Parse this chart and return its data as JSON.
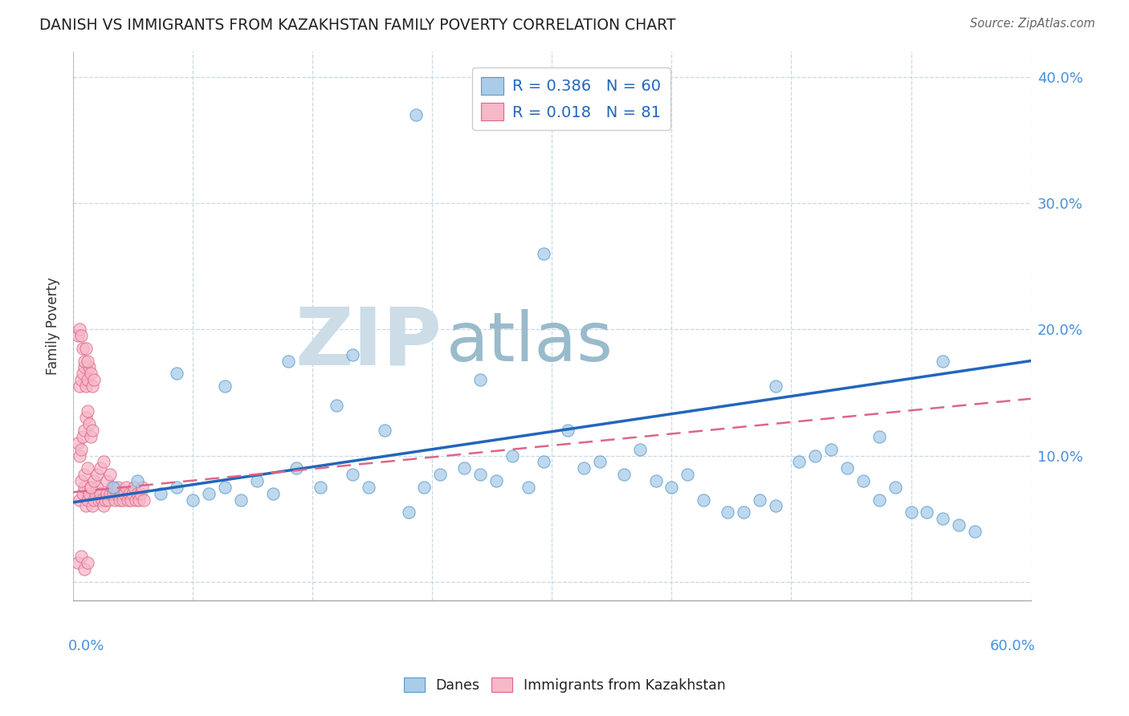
{
  "title": "DANISH VS IMMIGRANTS FROM KAZAKHSTAN FAMILY POVERTY CORRELATION CHART",
  "source": "Source: ZipAtlas.com",
  "ylabel": "Family Poverty",
  "yticks": [
    0.0,
    0.1,
    0.2,
    0.3,
    0.4
  ],
  "ytick_labels": [
    "",
    "10.0%",
    "20.0%",
    "30.0%",
    "40.0%"
  ],
  "xlim": [
    0.0,
    0.6
  ],
  "ylim": [
    -0.015,
    0.42
  ],
  "danes_R": 0.386,
  "danes_N": 60,
  "immigrants_R": 0.018,
  "immigrants_N": 81,
  "danes_color": "#aacce8",
  "danes_edge_color": "#5599cc",
  "immigrants_color": "#f7b8c8",
  "immigrants_edge_color": "#dd6688",
  "trend_blue": "#2266bb",
  "trend_pink": "#dd6688",
  "watermark_zip_color": "#ccdde8",
  "watermark_atlas_color": "#99bbcc",
  "background_color": "#ffffff",
  "danes_x": [
    0.025,
    0.04,
    0.055,
    0.065,
    0.075,
    0.085,
    0.095,
    0.105,
    0.115,
    0.125,
    0.14,
    0.155,
    0.165,
    0.175,
    0.185,
    0.195,
    0.21,
    0.22,
    0.23,
    0.245,
    0.255,
    0.265,
    0.275,
    0.285,
    0.295,
    0.31,
    0.32,
    0.33,
    0.345,
    0.355,
    0.365,
    0.375,
    0.385,
    0.395,
    0.41,
    0.42,
    0.43,
    0.44,
    0.455,
    0.465,
    0.475,
    0.485,
    0.495,
    0.505,
    0.515,
    0.525,
    0.535,
    0.545,
    0.555,
    0.565,
    0.065,
    0.095,
    0.135,
    0.175,
    0.215,
    0.255,
    0.295,
    0.44,
    0.505,
    0.545
  ],
  "danes_y": [
    0.075,
    0.08,
    0.07,
    0.075,
    0.065,
    0.07,
    0.075,
    0.065,
    0.08,
    0.07,
    0.09,
    0.075,
    0.14,
    0.085,
    0.075,
    0.12,
    0.055,
    0.075,
    0.085,
    0.09,
    0.085,
    0.08,
    0.1,
    0.075,
    0.095,
    0.12,
    0.09,
    0.095,
    0.085,
    0.105,
    0.08,
    0.075,
    0.085,
    0.065,
    0.055,
    0.055,
    0.065,
    0.06,
    0.095,
    0.1,
    0.105,
    0.09,
    0.08,
    0.065,
    0.075,
    0.055,
    0.055,
    0.05,
    0.045,
    0.04,
    0.165,
    0.155,
    0.175,
    0.18,
    0.37,
    0.16,
    0.26,
    0.155,
    0.115,
    0.175
  ],
  "imm_x": [
    0.004,
    0.006,
    0.007,
    0.008,
    0.009,
    0.01,
    0.011,
    0.012,
    0.013,
    0.014,
    0.015,
    0.016,
    0.017,
    0.018,
    0.019,
    0.02,
    0.021,
    0.022,
    0.023,
    0.024,
    0.025,
    0.026,
    0.027,
    0.028,
    0.029,
    0.03,
    0.031,
    0.032,
    0.033,
    0.034,
    0.035,
    0.036,
    0.037,
    0.038,
    0.039,
    0.04,
    0.041,
    0.042,
    0.043,
    0.044,
    0.005,
    0.007,
    0.009,
    0.011,
    0.013,
    0.015,
    0.017,
    0.019,
    0.021,
    0.023,
    0.003,
    0.004,
    0.005,
    0.006,
    0.007,
    0.008,
    0.009,
    0.01,
    0.011,
    0.012,
    0.004,
    0.005,
    0.006,
    0.007,
    0.008,
    0.009,
    0.01,
    0.011,
    0.012,
    0.013,
    0.003,
    0.004,
    0.005,
    0.006,
    0.007,
    0.008,
    0.009,
    0.003,
    0.005,
    0.007,
    0.009
  ],
  "imm_y": [
    0.065,
    0.07,
    0.075,
    0.06,
    0.065,
    0.07,
    0.075,
    0.06,
    0.065,
    0.07,
    0.075,
    0.065,
    0.07,
    0.065,
    0.06,
    0.065,
    0.07,
    0.065,
    0.07,
    0.075,
    0.07,
    0.065,
    0.07,
    0.075,
    0.065,
    0.07,
    0.065,
    0.07,
    0.075,
    0.065,
    0.07,
    0.065,
    0.07,
    0.075,
    0.065,
    0.07,
    0.065,
    0.07,
    0.075,
    0.065,
    0.08,
    0.085,
    0.09,
    0.075,
    0.08,
    0.085,
    0.09,
    0.095,
    0.08,
    0.085,
    0.11,
    0.1,
    0.105,
    0.115,
    0.12,
    0.13,
    0.135,
    0.125,
    0.115,
    0.12,
    0.155,
    0.16,
    0.165,
    0.17,
    0.155,
    0.16,
    0.17,
    0.165,
    0.155,
    0.16,
    0.195,
    0.2,
    0.195,
    0.185,
    0.175,
    0.185,
    0.175,
    0.015,
    0.02,
    0.01,
    0.015
  ],
  "trend_danes_x0": 0.0,
  "trend_danes_y0": 0.063,
  "trend_danes_x1": 0.6,
  "trend_danes_y1": 0.175,
  "trend_imm_x0": 0.0,
  "trend_imm_y0": 0.071,
  "trend_imm_x1": 0.6,
  "trend_imm_y1": 0.145
}
